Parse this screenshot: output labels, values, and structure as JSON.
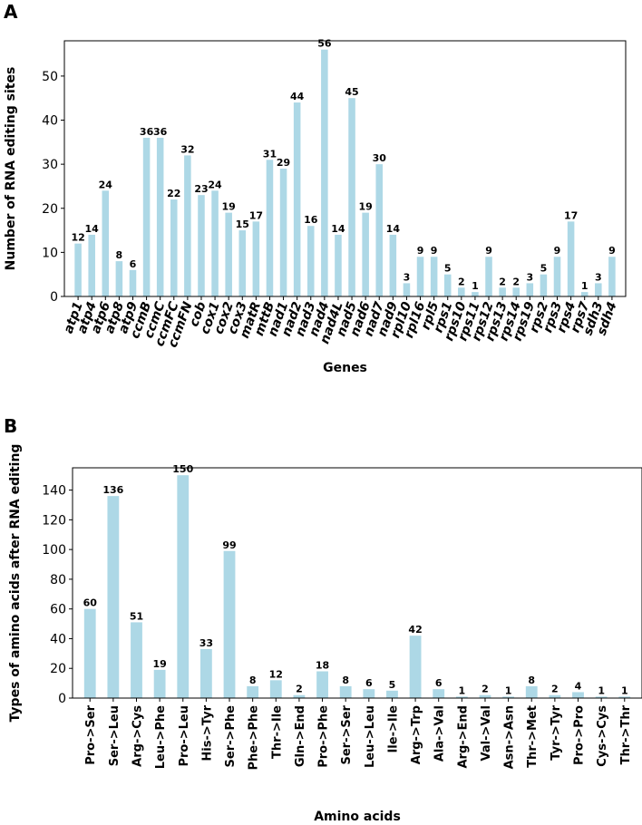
{
  "colors": {
    "bar": "#add8e6",
    "axis": "#000000"
  },
  "chart_data": [
    {
      "panel": "A",
      "type": "bar",
      "xlabel": "Genes",
      "ylabel": "Number of RNA editing sites",
      "ylim": [
        0,
        58
      ],
      "yticks": [
        0,
        10,
        20,
        30,
        40,
        50
      ],
      "categories": [
        "atp1",
        "atp4",
        "atp6",
        "atp8",
        "atp9",
        "ccmB",
        "ccmC",
        "ccmFC",
        "ccmFN",
        "cob",
        "cox1",
        "cox2",
        "cox3",
        "matR",
        "mttB",
        "nad1",
        "nad2",
        "nad3",
        "nad4",
        "nad4L",
        "nad5",
        "nad6",
        "nad7",
        "nad9",
        "rpl10",
        "rpl16",
        "rpl5",
        "rps1",
        "rps10",
        "rps11",
        "rps12",
        "rps13",
        "rps14",
        "rps19",
        "rps2",
        "rps3",
        "rps4",
        "rps7",
        "sdh3",
        "sdh4"
      ],
      "values": [
        12,
        14,
        24,
        8,
        6,
        36,
        36,
        22,
        32,
        23,
        24,
        19,
        15,
        17,
        31,
        29,
        44,
        16,
        56,
        14,
        45,
        19,
        30,
        14,
        3,
        9,
        9,
        5,
        2,
        1,
        9,
        2,
        2,
        3,
        5,
        9,
        17,
        1,
        3,
        9
      ]
    },
    {
      "panel": "B",
      "type": "bar",
      "xlabel": "Amino acids",
      "ylabel": "Types of amino acids after RNA editing",
      "ylim": [
        0,
        155
      ],
      "yticks": [
        0,
        20,
        40,
        60,
        80,
        100,
        120,
        140
      ],
      "categories": [
        "Pro->Ser",
        "Ser->Leu",
        "Arg->Cys",
        "Leu->Phe",
        "Pro->Leu",
        "His->Tyr",
        "Ser->Phe",
        "Phe->Phe",
        "Thr->Ile",
        "Gln->End",
        "Pro->Phe",
        "Ser->Ser",
        "Leu->Leu",
        "Ile->Ile",
        "Arg->Trp",
        "Ala->Val",
        "Arg->End",
        "Val->Val",
        "Asn->Asn",
        "Thr->Met",
        "Tyr->Tyr",
        "Pro->Pro",
        "Cys->Cys",
        "Thr->Thr"
      ],
      "values": [
        60,
        136,
        51,
        19,
        150,
        33,
        99,
        8,
        12,
        2,
        18,
        8,
        6,
        5,
        42,
        6,
        1,
        2,
        1,
        8,
        2,
        4,
        1,
        1
      ]
    }
  ]
}
